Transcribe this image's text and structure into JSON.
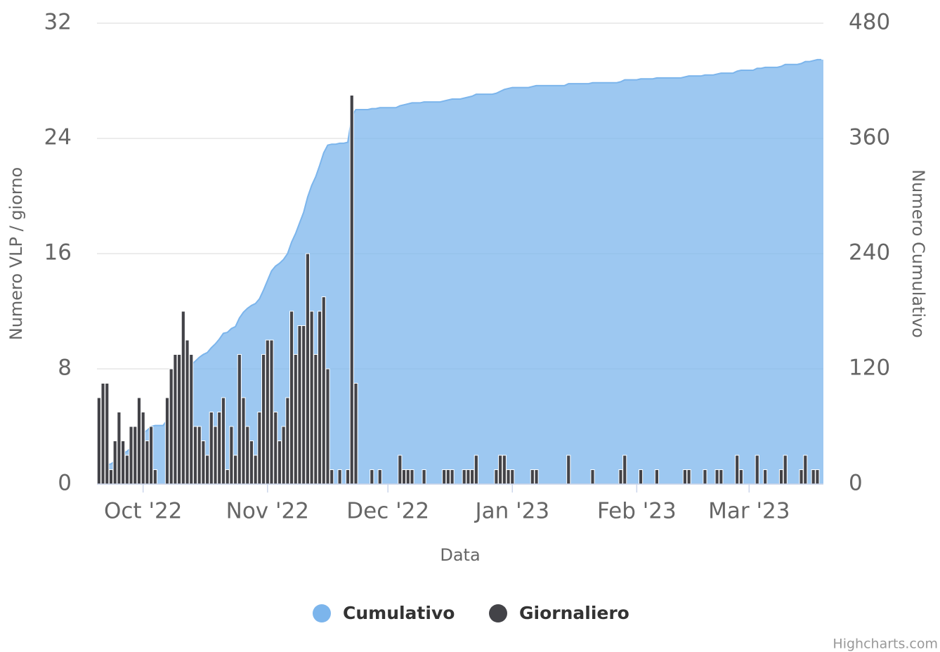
{
  "chart_data": {
    "type": "combo",
    "x_title": "Data",
    "y_title": "Numero VLP / giorno",
    "y2_title": "Numero Cumulativo",
    "credits": "Highcharts.com",
    "categories": [
      null,
      null,
      null,
      null,
      null,
      null,
      null,
      null,
      null,
      null,
      null,
      "Oct '22",
      null,
      null,
      null,
      null,
      null,
      null,
      null,
      null,
      null,
      null,
      null,
      null,
      null,
      null,
      null,
      null,
      null,
      null,
      null,
      null,
      null,
      null,
      null,
      null,
      null,
      null,
      null,
      null,
      null,
      null,
      "Nov '22",
      null,
      null,
      null,
      null,
      null,
      null,
      null,
      null,
      null,
      null,
      null,
      null,
      null,
      null,
      null,
      null,
      null,
      null,
      null,
      null,
      null,
      null,
      null,
      null,
      null,
      null,
      null,
      null,
      null,
      "Dec '22",
      null,
      null,
      null,
      null,
      null,
      null,
      null,
      null,
      null,
      null,
      null,
      null,
      null,
      null,
      null,
      null,
      null,
      null,
      null,
      null,
      null,
      null,
      null,
      null,
      null,
      null,
      null,
      null,
      null,
      null,
      "Jan '23",
      null,
      null,
      null,
      null,
      null,
      null,
      null,
      null,
      null,
      null,
      null,
      null,
      null,
      null,
      null,
      null,
      null,
      null,
      null,
      null,
      null,
      null,
      null,
      null,
      null,
      null,
      null,
      null,
      null,
      null,
      "Feb '23",
      null,
      null,
      null,
      null,
      null,
      null,
      null,
      null,
      null,
      null,
      null,
      null,
      null,
      null,
      null,
      null,
      null,
      null,
      null,
      null,
      null,
      null,
      null,
      null,
      null,
      null,
      null,
      "Mar '23",
      null,
      null,
      null,
      null,
      null,
      null,
      null,
      null,
      null,
      null,
      null,
      null,
      null,
      null,
      null,
      null,
      null,
      null
    ],
    "series": [
      {
        "name": "Cumulativo",
        "type": "area",
        "axis": "y2",
        "color": "#7cb5ec",
        "values": [
          6,
          13,
          20,
          21,
          24,
          29,
          32,
          34,
          38,
          42,
          48,
          53,
          56,
          60,
          61,
          61,
          61,
          67,
          75,
          84,
          93,
          105,
          115,
          124,
          128,
          132,
          135,
          137,
          142,
          146,
          151,
          157,
          158,
          162,
          164,
          173,
          179,
          183,
          186,
          188,
          193,
          202,
          212,
          222,
          227,
          230,
          234,
          240,
          252,
          261,
          272,
          283,
          299,
          311,
          320,
          332,
          345,
          353,
          354,
          354,
          355,
          355,
          356,
          383,
          390,
          390,
          390,
          390,
          391,
          391,
          392,
          392,
          392,
          392,
          392,
          394,
          395,
          396,
          397,
          397,
          397,
          398,
          398,
          398,
          398,
          398,
          399,
          400,
          401,
          401,
          401,
          402,
          403,
          404,
          406,
          406,
          406,
          406,
          406,
          407,
          409,
          411,
          412,
          413,
          413,
          413,
          413,
          413,
          414,
          415,
          415,
          415,
          415,
          415,
          415,
          415,
          415,
          417,
          417,
          417,
          417,
          417,
          417,
          418,
          418,
          418,
          418,
          418,
          418,
          418,
          419,
          421,
          421,
          421,
          421,
          422,
          422,
          422,
          422,
          423,
          423,
          423,
          423,
          423,
          423,
          423,
          424,
          425,
          425,
          425,
          425,
          426,
          426,
          426,
          427,
          428,
          428,
          428,
          428,
          430,
          431,
          431,
          431,
          431,
          433,
          433,
          434,
          434,
          434,
          434,
          435,
          437,
          437,
          437,
          437,
          438,
          440,
          440,
          441,
          442,
          442
        ]
      },
      {
        "name": "Giornaliero",
        "type": "bar",
        "color": "#434348",
        "values": [
          6,
          7,
          7,
          1,
          3,
          5,
          3,
          2,
          4,
          4,
          6,
          5,
          3,
          4,
          1,
          0,
          0,
          6,
          8,
          9,
          9,
          12,
          10,
          9,
          4,
          4,
          3,
          2,
          5,
          4,
          5,
          6,
          1,
          4,
          2,
          9,
          6,
          4,
          3,
          2,
          5,
          9,
          10,
          10,
          5,
          3,
          4,
          6,
          12,
          9,
          11,
          11,
          16,
          12,
          9,
          12,
          13,
          8,
          1,
          0,
          1,
          0,
          1,
          27,
          7,
          0,
          0,
          0,
          1,
          0,
          1,
          0,
          0,
          0,
          0,
          2,
          1,
          1,
          1,
          0,
          0,
          1,
          0,
          0,
          0,
          0,
          1,
          1,
          1,
          0,
          0,
          1,
          1,
          1,
          2,
          0,
          0,
          0,
          0,
          1,
          2,
          2,
          1,
          1,
          0,
          0,
          0,
          0,
          1,
          1,
          0,
          0,
          0,
          0,
          0,
          0,
          0,
          2,
          0,
          0,
          0,
          0,
          0,
          1,
          0,
          0,
          0,
          0,
          0,
          0,
          1,
          2,
          0,
          0,
          0,
          1,
          0,
          0,
          0,
          1,
          0,
          0,
          0,
          0,
          0,
          0,
          1,
          1,
          0,
          0,
          0,
          1,
          0,
          0,
          1,
          1,
          0,
          0,
          0,
          2,
          1,
          0,
          0,
          0,
          2,
          0,
          1,
          0,
          0,
          0,
          1,
          2,
          0,
          0,
          0,
          1,
          2,
          0,
          1,
          1,
          0
        ]
      }
    ],
    "ylim": [
      0,
      32
    ],
    "yticks": [
      0,
      8,
      16,
      24,
      32
    ],
    "y2lim": [
      0,
      480
    ],
    "y2ticks": [
      0,
      120,
      240,
      360,
      480
    ],
    "grid": true
  }
}
